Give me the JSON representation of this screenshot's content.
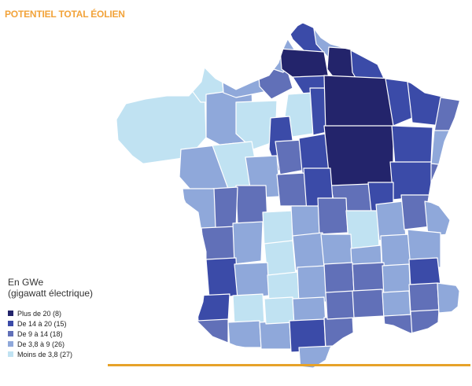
{
  "header": {
    "title": "POTENTIEL TOTAL ÉOLIEN"
  },
  "unit": {
    "line1": "En GWe",
    "line2": "(gigawatt électrique)"
  },
  "legend": {
    "items": [
      {
        "label": "Plus de 20 (8)",
        "color": "#23246b"
      },
      {
        "label": "De 14 à 20 (15)",
        "color": "#3b4ba8"
      },
      {
        "label": "De 9 à 14 (18)",
        "color": "#6170b8"
      },
      {
        "label": "De 3,8 à 9 (26)",
        "color": "#8fa8da"
      },
      {
        "label": "Moins de 3,8 (27)",
        "color": "#c0e2f2"
      }
    ]
  },
  "colors": {
    "accent": "#f2a33a",
    "rule": "#e6a229",
    "border": "#ffffff"
  }
}
